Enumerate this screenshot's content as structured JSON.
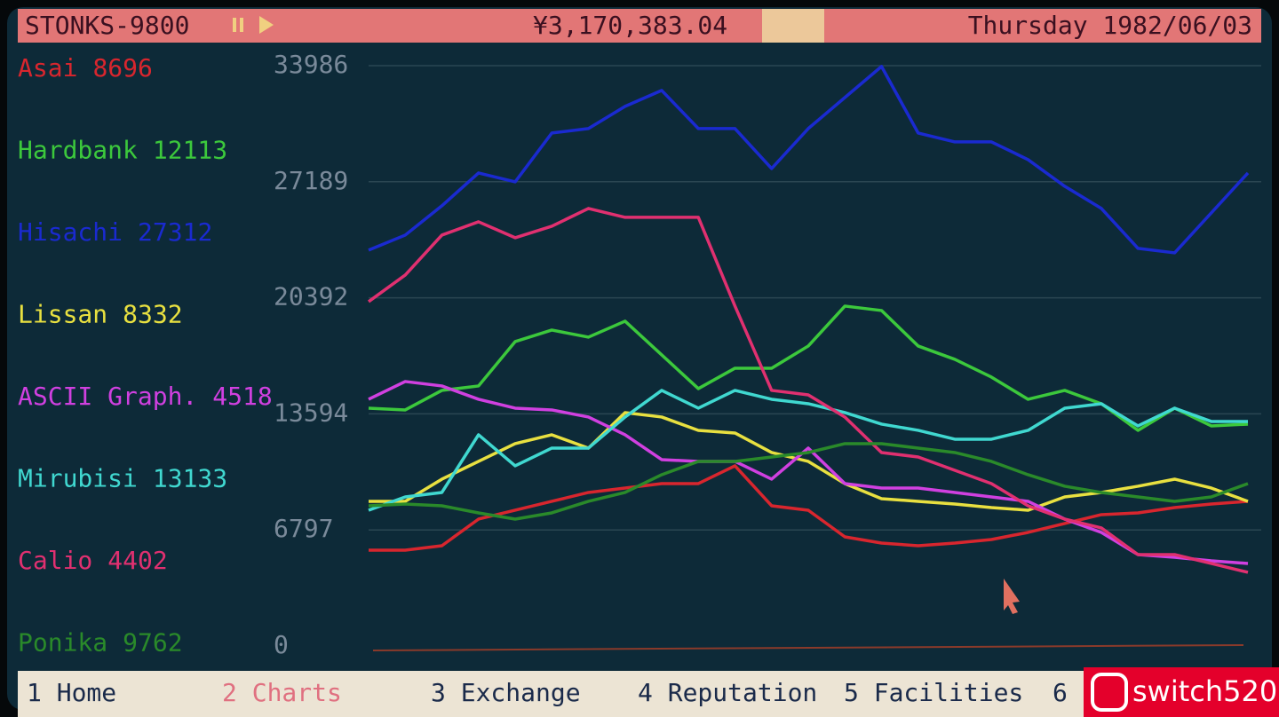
{
  "header": {
    "title": "STONKS-9800",
    "money": "¥3,170,383.04",
    "date": "Thursday 1982/06/03"
  },
  "chart_data": {
    "type": "line",
    "ylim": [
      0,
      33986
    ],
    "yticks": [
      0,
      6797,
      13594,
      20392,
      27189,
      33986
    ],
    "grid": true,
    "series": [
      {
        "name": "Asai",
        "price": 8696,
        "color": "#d8262e",
        "values": [
          5613,
          5613,
          5873,
          7432,
          7952,
          8472,
          8992,
          9252,
          9511,
          9511,
          10551,
          8212,
          7952,
          6393,
          6029,
          5873,
          6029,
          6237,
          6653,
          7173,
          7692,
          7796,
          8108,
          8316,
          8472
        ]
      },
      {
        "name": "Hardbank",
        "price": 12113,
        "color": "#3cc83c",
        "values": [
          13929,
          13825,
          14969,
          15229,
          17827,
          18503,
          18087,
          19023,
          17048,
          15073,
          16268,
          16268,
          17568,
          19906,
          19647,
          17568,
          16788,
          15748,
          14449,
          14969,
          14189,
          12630,
          13929,
          12890,
          12994
        ]
      },
      {
        "name": "Hisachi",
        "price": 27312,
        "color": "#1a2ad0",
        "values": [
          23181,
          24064,
          25780,
          27703,
          27183,
          30042,
          30302,
          31601,
          32536,
          30302,
          30302,
          27963,
          30302,
          32121,
          33940,
          30042,
          29522,
          29522,
          28482,
          26923,
          25624,
          23285,
          23025,
          25364,
          27703
        ]
      },
      {
        "name": "Lissan",
        "price": 8332,
        "color": "#e8e040",
        "values": [
          8472,
          8472,
          9771,
          10811,
          11850,
          12370,
          11590,
          13669,
          13410,
          12630,
          12474,
          11331,
          10811,
          9511,
          8628,
          8472,
          8316,
          8108,
          7952,
          8732,
          8992,
          9356,
          9771,
          9252,
          8472
        ]
      },
      {
        "name": "ASCII Graph.",
        "price": 4518,
        "color": "#d040e0",
        "values": [
          14449,
          15489,
          15229,
          14449,
          13929,
          13825,
          13410,
          12370,
          10915,
          10811,
          10811,
          9771,
          11590,
          9511,
          9252,
          9252,
          8992,
          8732,
          8472,
          7432,
          6653,
          5353,
          5198,
          4990,
          4834
        ]
      },
      {
        "name": "Mirubisi",
        "price": 13133,
        "color": "#40d8d0",
        "values": [
          7952,
          8732,
          8992,
          12370,
          10551,
          11590,
          11590,
          13410,
          14969,
          13929,
          14969,
          14449,
          14189,
          13669,
          12994,
          12630,
          12110,
          12110,
          12630,
          13929,
          14189,
          12890,
          13929,
          13150,
          13150
        ]
      },
      {
        "name": "Calio",
        "price": 4402,
        "color": "#e03070",
        "values": [
          20166,
          21726,
          24064,
          24844,
          23909,
          24584,
          25624,
          25104,
          25104,
          25104,
          19906,
          14969,
          14709,
          13410,
          11331,
          11071,
          10291,
          9511,
          8212,
          7432,
          6913,
          5353,
          5353,
          4834,
          4314
        ]
      },
      {
        "name": "Ponika",
        "price": 9762,
        "color": "#2a8a2a",
        "values": [
          8212,
          8316,
          8212,
          7796,
          7432,
          7796,
          8472,
          8992,
          10031,
          10811,
          10811,
          11071,
          11331,
          11850,
          11850,
          11590,
          11331,
          10811,
          10031,
          9356,
          8992,
          8732,
          8472,
          8732,
          9511
        ]
      }
    ]
  },
  "tabs": [
    "1 Home",
    "2 Charts",
    "3 Exchange",
    "4 Reputation",
    "5 Facilities",
    "6"
  ],
  "watermark": "switch520"
}
